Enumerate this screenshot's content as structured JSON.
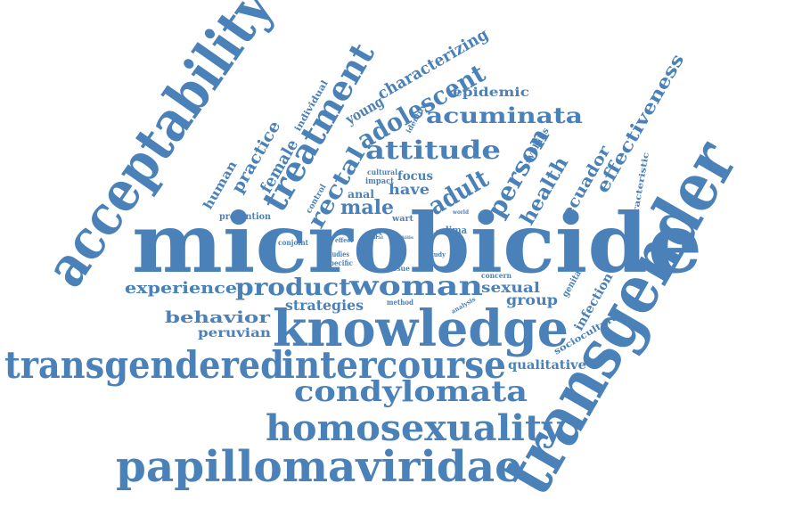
{
  "color": "#4a81b8",
  "words": [
    "microbicide",
    "transgender",
    "acceptability",
    "knowledge",
    "transgendered",
    "intercourse",
    "papillomaviridae",
    "homosexuality",
    "condylomata",
    "treatment",
    "woman",
    "product",
    "attitude",
    "adolescent",
    "rectal",
    "acuminata",
    "person",
    "experience",
    "characterizing",
    "young",
    "effectiveness",
    "adult",
    "male",
    "health",
    "ecuador",
    "practice",
    "female",
    "behavior",
    "strategies",
    "sexual",
    "group",
    "infection",
    "human",
    "individual",
    "epidemic",
    "have",
    "focus",
    "anal",
    "peruvian",
    "qualitative",
    "sociocultural",
    "characteristic",
    "prevention",
    "genital",
    "syphilis",
    "identify",
    "control",
    "impact",
    "cultural",
    "wart",
    "lima",
    "conjoint",
    "studies",
    "specific",
    "issue",
    "concern",
    "method",
    "analysis",
    "effect",
    "affect",
    "public",
    "study",
    "world",
    "sex",
    "viral",
    "skills"
  ]
}
